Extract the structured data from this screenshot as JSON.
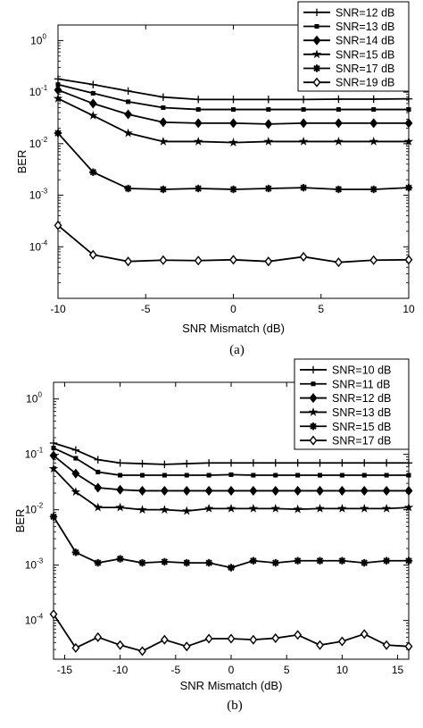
{
  "chart_data": [
    {
      "type": "line",
      "caption": "(a)",
      "xlabel": "SNR Mismatch (dB)",
      "ylabel": "BER",
      "yscale": "log",
      "xlim": [
        -10,
        10
      ],
      "ylim": [
        1e-05,
        2
      ],
      "xticks": [
        -10,
        -5,
        0,
        5,
        10
      ],
      "yticks": [
        {
          "base": "10",
          "exp": "0"
        },
        {
          "base": "10",
          "exp": "-1"
        },
        {
          "base": "10",
          "exp": "-2"
        },
        {
          "base": "10",
          "exp": "-3"
        },
        {
          "base": "10",
          "exp": "-4"
        }
      ],
      "legend_position": "top-right",
      "x": [
        -10,
        -8,
        -6,
        -4,
        -2,
        0,
        2,
        4,
        6,
        8,
        10
      ],
      "series": [
        {
          "name": "SNR=12 dB",
          "marker": "plus",
          "values": [
            0.18,
            0.14,
            0.105,
            0.08,
            0.072,
            0.072,
            0.072,
            0.072,
            0.073,
            0.073,
            0.074
          ]
        },
        {
          "name": "SNR=13 dB",
          "marker": "square",
          "values": [
            0.14,
            0.095,
            0.065,
            0.05,
            0.046,
            0.046,
            0.046,
            0.046,
            0.046,
            0.046,
            0.046
          ]
        },
        {
          "name": "SNR=14 dB",
          "marker": "diamond-filled",
          "values": [
            0.11,
            0.06,
            0.037,
            0.026,
            0.025,
            0.025,
            0.024,
            0.025,
            0.025,
            0.025,
            0.025
          ]
        },
        {
          "name": "SNR=15 dB",
          "marker": "star",
          "values": [
            0.075,
            0.035,
            0.016,
            0.011,
            0.011,
            0.0105,
            0.011,
            0.011,
            0.011,
            0.011,
            0.011
          ]
        },
        {
          "name": "SNR=17 dB",
          "marker": "asterisk",
          "values": [
            0.016,
            0.0028,
            0.00135,
            0.0013,
            0.00135,
            0.0013,
            0.00135,
            0.0014,
            0.0013,
            0.0013,
            0.0014
          ]
        },
        {
          "name": "SNR=19 dB",
          "marker": "diamond-open",
          "values": [
            0.00026,
            7e-05,
            5.2e-05,
            5.5e-05,
            5.4e-05,
            5.6e-05,
            5.2e-05,
            6.4e-05,
            5e-05,
            5.5e-05,
            5.6e-05
          ]
        }
      ]
    },
    {
      "type": "line",
      "caption": "(b)",
      "xlabel": "SNR Mismatch (dB)",
      "ylabel": "BER",
      "yscale": "log",
      "xlim": [
        -16,
        16
      ],
      "ylim": [
        2e-05,
        2
      ],
      "xticks": [
        -15,
        -10,
        -5,
        0,
        5,
        10,
        15
      ],
      "yticks": [
        {
          "base": "10",
          "exp": "0"
        },
        {
          "base": "10",
          "exp": "-1"
        },
        {
          "base": "10",
          "exp": "-2"
        },
        {
          "base": "10",
          "exp": "-3"
        },
        {
          "base": "10",
          "exp": "-4"
        }
      ],
      "legend_position": "top-right",
      "x": [
        -16,
        -14,
        -12,
        -10,
        -8,
        -6,
        -4,
        -2,
        0,
        2,
        4,
        6,
        8,
        10,
        12,
        14,
        16
      ],
      "series": [
        {
          "name": "SNR=10 dB",
          "marker": "plus",
          "values": [
            0.16,
            0.12,
            0.08,
            0.07,
            0.068,
            0.066,
            0.068,
            0.07,
            0.07,
            0.07,
            0.07,
            0.07,
            0.07,
            0.07,
            0.07,
            0.07,
            0.07
          ]
        },
        {
          "name": "SNR=11 dB",
          "marker": "square",
          "values": [
            0.13,
            0.085,
            0.048,
            0.042,
            0.042,
            0.042,
            0.042,
            0.042,
            0.043,
            0.042,
            0.042,
            0.042,
            0.042,
            0.042,
            0.042,
            0.042,
            0.042
          ]
        },
        {
          "name": "SNR=12 dB",
          "marker": "diamond-filled",
          "values": [
            0.095,
            0.045,
            0.025,
            0.023,
            0.022,
            0.022,
            0.022,
            0.022,
            0.022,
            0.022,
            0.022,
            0.022,
            0.022,
            0.022,
            0.022,
            0.022,
            0.022
          ]
        },
        {
          "name": "SNR=13 dB",
          "marker": "star",
          "values": [
            0.055,
            0.021,
            0.011,
            0.011,
            0.01,
            0.01,
            0.0095,
            0.0105,
            0.0105,
            0.0105,
            0.0105,
            0.0102,
            0.0105,
            0.0105,
            0.0105,
            0.0105,
            0.011
          ]
        },
        {
          "name": "SNR=15 dB",
          "marker": "asterisk",
          "values": [
            0.0075,
            0.0017,
            0.0011,
            0.0013,
            0.0011,
            0.00115,
            0.0011,
            0.0011,
            0.0009,
            0.0012,
            0.0011,
            0.0012,
            0.0012,
            0.0012,
            0.0011,
            0.0012,
            0.0012
          ]
        },
        {
          "name": "SNR=17 dB",
          "marker": "diamond-open",
          "values": [
            0.00013,
            3.2e-05,
            5e-05,
            3.6e-05,
            2.8e-05,
            4.5e-05,
            3.4e-05,
            4.7e-05,
            4.7e-05,
            4.5e-05,
            4.8e-05,
            5.5e-05,
            3.6e-05,
            4.2e-05,
            5.7e-05,
            3.6e-05,
            3.4e-05
          ]
        }
      ]
    }
  ]
}
